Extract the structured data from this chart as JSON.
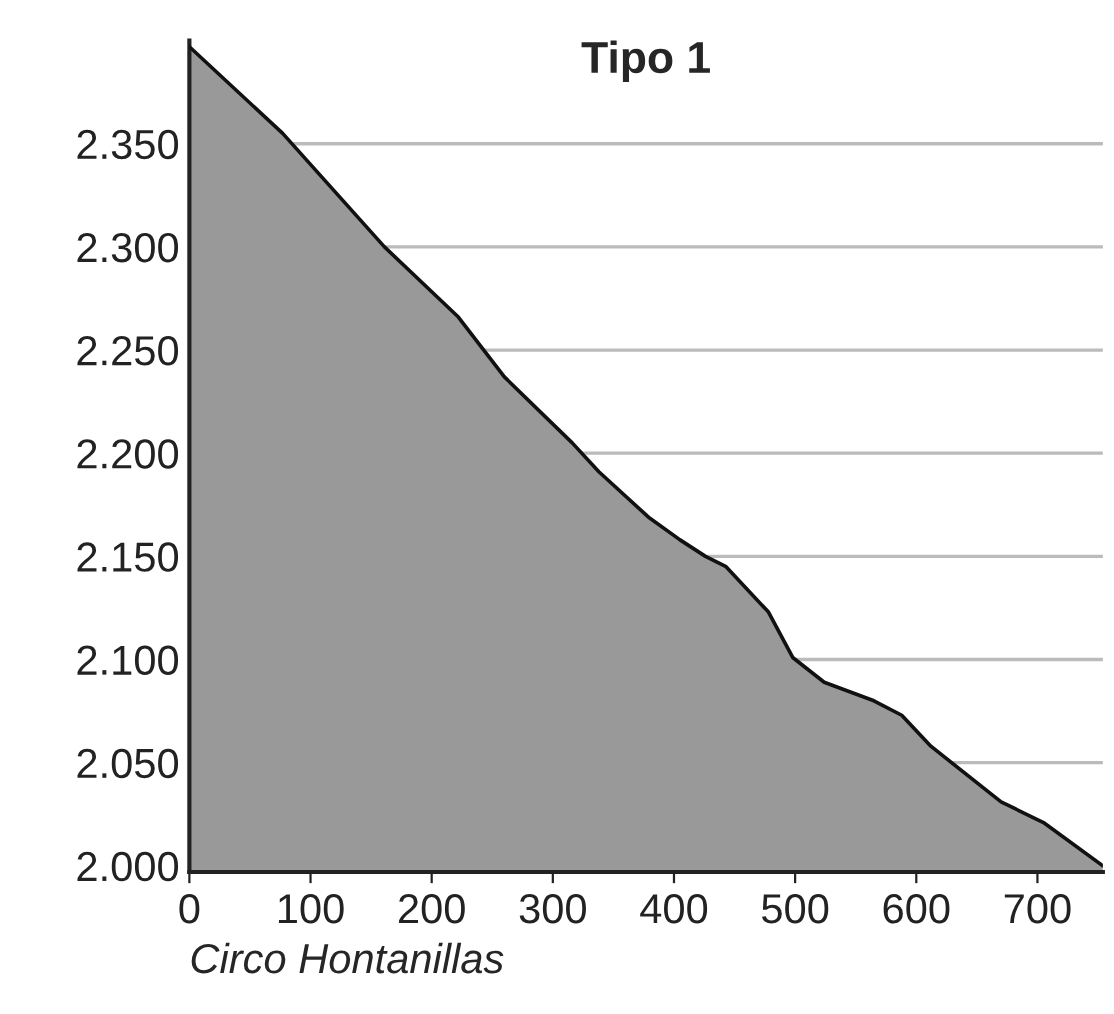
{
  "chart_data": {
    "type": "area",
    "title": "Tipo 1",
    "xlabel": "Circo Hontanillas",
    "x": [
      0,
      77,
      161,
      222,
      260,
      316,
      338,
      379,
      405,
      426,
      443,
      478,
      498,
      524,
      565,
      588,
      612,
      670,
      705,
      754
    ],
    "series": [
      {
        "color": "#999999",
        "values": [
          2397,
          2355,
          2300,
          2266,
          2237,
          2205,
          2191,
          2169,
          2158,
          2150,
          2145,
          2123,
          2101,
          2089,
          2080,
          2073,
          2058,
          2031,
          2021,
          2000
        ]
      }
    ],
    "xlim": [
      0,
      754
    ],
    "ylim": [
      1997,
      2400
    ],
    "xticks": [
      0,
      100,
      200,
      300,
      400,
      500,
      600,
      700
    ],
    "yticks": [
      {
        "value": 2000,
        "label": "2.000"
      },
      {
        "value": 2050,
        "label": "2.050"
      },
      {
        "value": 2100,
        "label": "2.100"
      },
      {
        "value": 2150,
        "label": "2.150"
      },
      {
        "value": 2200,
        "label": "2.200"
      },
      {
        "value": 2250,
        "label": "2.250"
      },
      {
        "value": 2300,
        "label": "2.300"
      },
      {
        "value": 2350,
        "label": "2.350"
      }
    ],
    "grid": "y"
  }
}
